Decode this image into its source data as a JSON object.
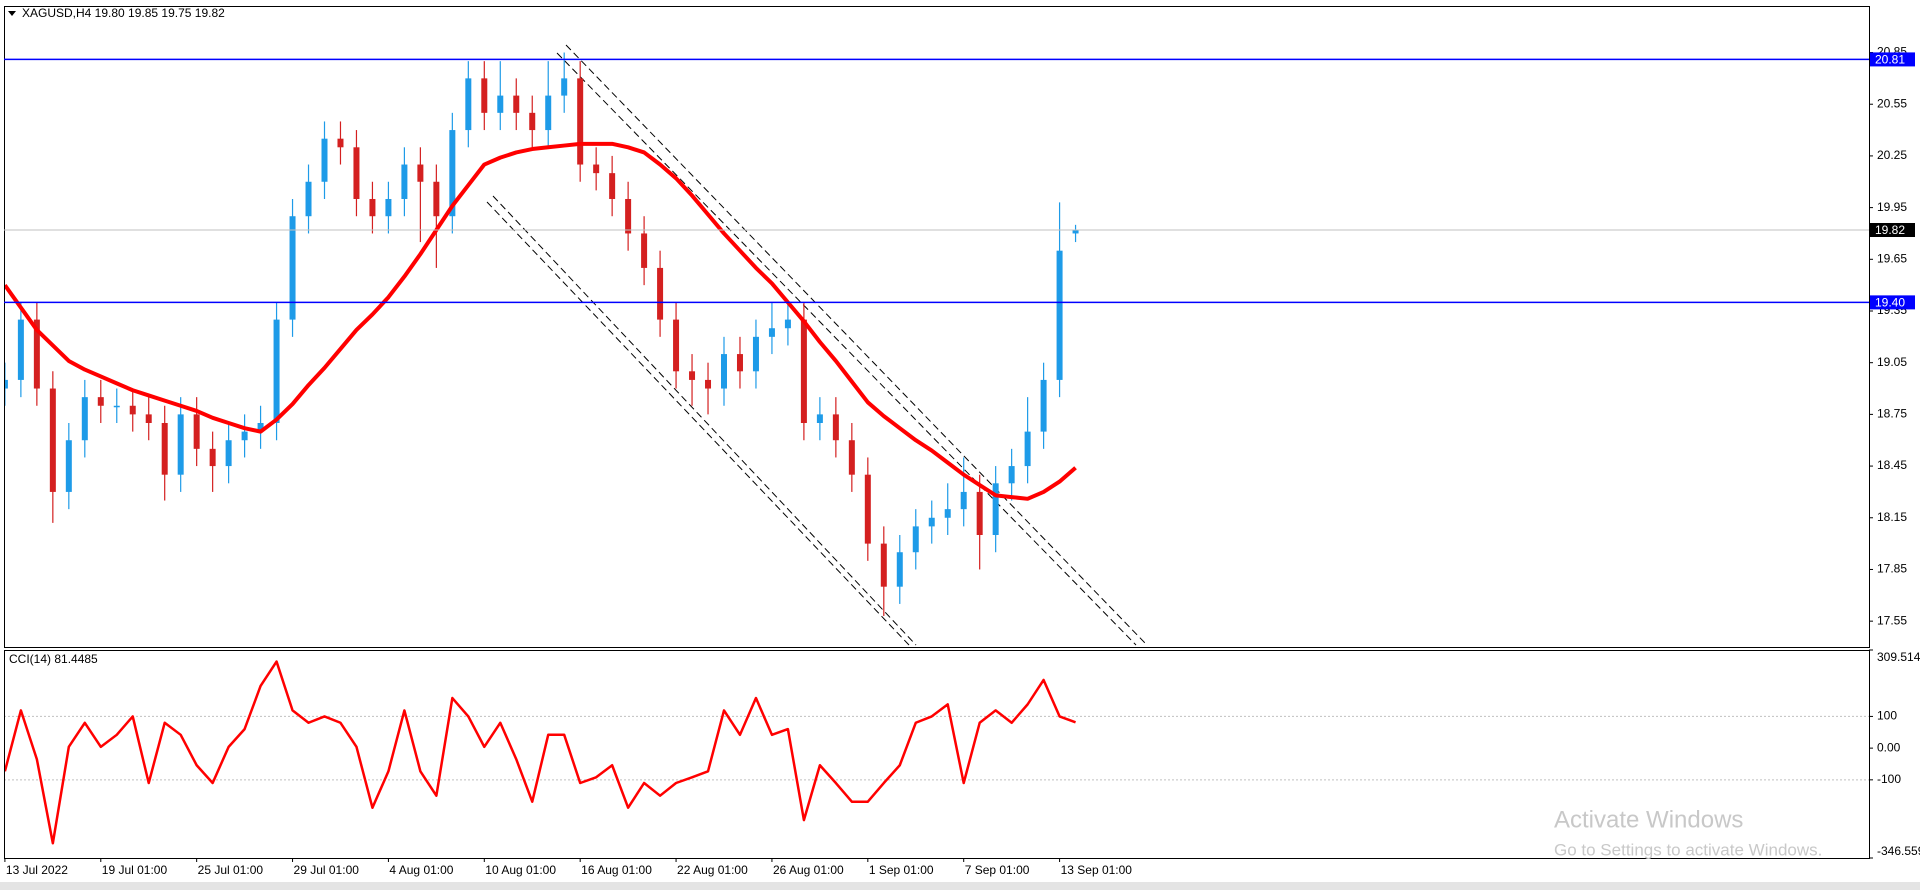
{
  "chart_data": [
    {
      "type": "candlestick",
      "title": "XAGUSD,H4  19.80 19.85 19.75 19.82",
      "categories": [
        "13 Jul 2022",
        null,
        null,
        null,
        null,
        null,
        "19 Jul 01:00",
        null,
        null,
        null,
        null,
        null,
        "25 Jul 01:00",
        null,
        null,
        null,
        null,
        null,
        "29 Jul 01:00",
        null,
        null,
        null,
        null,
        null,
        "4 Aug 01:00",
        null,
        null,
        null,
        null,
        null,
        "10 Aug 01:00",
        null,
        null,
        null,
        null,
        null,
        "16 Aug 01:00",
        null,
        null,
        null,
        null,
        null,
        "22 Aug 01:00",
        null,
        null,
        null,
        null,
        null,
        "26 Aug 01:00",
        null,
        null,
        null,
        null,
        null,
        "1 Sep 01:00",
        null,
        null,
        null,
        null,
        null,
        "7 Sep 01:00",
        null,
        null,
        null,
        null,
        null,
        "13 Sep 01:00",
        null
      ],
      "open": [
        18.9,
        18.95,
        19.3,
        18.9,
        18.3,
        18.6,
        18.85,
        18.8,
        18.8,
        18.75,
        18.7,
        18.4,
        18.75,
        18.55,
        18.45,
        18.6,
        18.65,
        18.7,
        19.3,
        19.9,
        20.1,
        20.35,
        20.3,
        20.0,
        19.9,
        20.0,
        20.2,
        20.1,
        19.9,
        20.4,
        20.7,
        20.5,
        20.6,
        20.5,
        20.4,
        20.6,
        20.7,
        20.2,
        20.15,
        20.0,
        19.8,
        19.6,
        19.3,
        19.0,
        18.95,
        18.9,
        19.1,
        19.0,
        19.2,
        19.25,
        19.3,
        18.7,
        18.75,
        18.6,
        18.4,
        18.0,
        17.75,
        17.95,
        18.1,
        18.15,
        18.2,
        18.3,
        18.05,
        18.35,
        18.45,
        18.65,
        18.95,
        19.8
      ],
      "high": [
        19.05,
        19.4,
        19.4,
        19.0,
        18.7,
        18.95,
        18.95,
        18.9,
        18.9,
        18.85,
        18.8,
        18.85,
        18.85,
        18.65,
        18.7,
        18.75,
        18.8,
        19.4,
        20.0,
        20.2,
        20.45,
        20.45,
        20.4,
        20.1,
        20.1,
        20.3,
        20.3,
        20.2,
        20.5,
        20.8,
        20.8,
        20.8,
        20.7,
        20.6,
        20.8,
        20.85,
        20.8,
        20.3,
        20.25,
        20.1,
        19.9,
        19.7,
        19.4,
        19.1,
        19.05,
        19.2,
        19.2,
        19.3,
        19.4,
        19.4,
        19.4,
        18.85,
        18.85,
        18.7,
        18.5,
        18.1,
        18.05,
        18.2,
        18.25,
        18.35,
        18.5,
        18.4,
        18.45,
        18.55,
        18.85,
        19.05,
        19.98,
        19.85
      ],
      "low": [
        18.8,
        18.85,
        18.8,
        18.12,
        18.2,
        18.5,
        18.7,
        18.7,
        18.65,
        18.6,
        18.25,
        18.3,
        18.45,
        18.3,
        18.35,
        18.5,
        18.55,
        18.6,
        19.2,
        19.8,
        20.0,
        20.2,
        19.9,
        19.8,
        19.8,
        19.9,
        19.75,
        19.6,
        19.8,
        20.3,
        20.4,
        20.4,
        20.4,
        20.3,
        20.3,
        20.5,
        20.1,
        20.05,
        19.9,
        19.7,
        19.5,
        19.2,
        18.9,
        18.8,
        18.75,
        18.8,
        18.9,
        18.9,
        19.1,
        19.15,
        18.6,
        18.6,
        18.5,
        18.3,
        17.9,
        17.58,
        17.65,
        17.85,
        18.0,
        18.05,
        18.1,
        17.85,
        17.95,
        18.25,
        18.35,
        18.55,
        18.85,
        19.75
      ],
      "close": [
        18.95,
        19.3,
        18.9,
        18.3,
        18.6,
        18.85,
        18.8,
        18.8,
        18.75,
        18.7,
        18.4,
        18.75,
        18.55,
        18.45,
        18.6,
        18.65,
        18.7,
        19.3,
        19.9,
        20.1,
        20.35,
        20.3,
        20.0,
        19.9,
        20.0,
        20.2,
        20.1,
        19.9,
        20.4,
        20.7,
        20.5,
        20.6,
        20.5,
        20.4,
        20.6,
        20.7,
        20.2,
        20.15,
        20.0,
        19.8,
        19.6,
        19.3,
        19.0,
        18.95,
        18.9,
        19.1,
        19.0,
        19.2,
        19.25,
        19.3,
        18.7,
        18.75,
        18.6,
        18.4,
        18.0,
        17.75,
        17.95,
        18.1,
        18.15,
        18.2,
        18.3,
        18.05,
        18.35,
        18.45,
        18.65,
        18.95,
        19.7,
        19.82
      ],
      "up_color": "#1e9be8",
      "down_color": "#d42020",
      "series": [
        {
          "color": "#ff0000",
          "values": [
            19.5,
            19.37,
            19.24,
            19.15,
            19.06,
            19.01,
            18.97,
            18.93,
            18.89,
            18.86,
            18.83,
            18.8,
            18.77,
            18.73,
            18.7,
            18.67,
            18.65,
            18.72,
            18.81,
            18.92,
            19.02,
            19.13,
            19.24,
            19.33,
            19.43,
            19.55,
            19.68,
            19.82,
            19.96,
            20.08,
            20.2,
            20.24,
            20.27,
            20.29,
            20.3,
            20.31,
            20.32,
            20.32,
            20.32,
            20.3,
            20.27,
            20.2,
            20.12,
            20.02,
            19.91,
            19.8,
            19.7,
            19.6,
            19.51,
            19.4,
            19.29,
            19.17,
            19.06,
            18.94,
            18.82,
            18.74,
            18.67,
            18.6,
            18.54,
            18.47,
            18.4,
            18.34,
            18.28,
            18.27,
            18.26,
            18.3,
            18.36,
            18.44
          ]
        }
      ],
      "ylim": [
        17.4,
        21.12
      ],
      "yticks": [
        17.55,
        17.85,
        18.15,
        18.45,
        18.75,
        19.05,
        19.35,
        19.65,
        19.95,
        20.25,
        20.55,
        20.85
      ],
      "hlines": [
        {
          "value": 20.81,
          "color": "#0000ff"
        },
        {
          "value": 19.4,
          "label": "19.40",
          "color": "#0000ff"
        },
        {
          "value": 19.82,
          "color": "#c0c0c0",
          "label_color": "#000000"
        }
      ]
    },
    {
      "type": "line",
      "title": "CCI(14) 81.4485",
      "series": [
        {
          "color": "#ff0000",
          "values": [
            -73,
            119,
            -35,
            -300,
            4,
            80,
            4,
            42,
            100,
            -110,
            80,
            42,
            -54,
            -110,
            4,
            60,
            196,
            273,
            119,
            80,
            100,
            80,
            4,
            -188,
            -73,
            119,
            -73,
            -150,
            158,
            100,
            4,
            80,
            -35,
            -169,
            42,
            42,
            -110,
            -92,
            -54,
            -188,
            -110,
            -150,
            -110,
            -92,
            -73,
            119,
            42,
            158,
            42,
            60,
            -227,
            -54,
            -110,
            -169,
            -169,
            -110,
            -54,
            80,
            100,
            138,
            -110,
            80,
            119,
            80,
            138,
            215,
            100,
            81.4485
          ]
        }
      ],
      "ylim": [
        -346.559,
        309.514
      ],
      "yticks": [
        309.514,
        100,
        {
          "value": 0,
          "label": "0.00"
        },
        -100,
        -346.559
      ]
    }
  ],
  "watermark": {
    "title": "Activate Windows",
    "subtitle": "Go to Settings to activate Windows."
  }
}
